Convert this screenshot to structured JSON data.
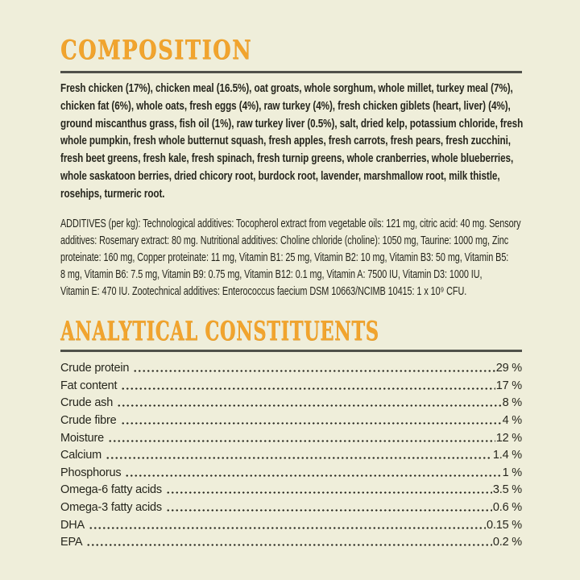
{
  "label": {
    "background_color": "#efeeda",
    "text_color": "#26261d",
    "accent_color": "#f1a42e",
    "divider_color": "#50514a"
  },
  "composition": {
    "title": "COMPOSITION",
    "ingredients_lines": [
      "Fresh chicken (17%), chicken meal (16.5%), oat groats, whole sorghum, whole millet, turkey meal (7%),",
      "chicken fat (6%), whole oats, fresh eggs (4%), raw turkey (4%), fresh chicken giblets (heart, liver) (4%),",
      "ground miscanthus grass, fish oil (1%), raw turkey liver (0.5%), salt, dried kelp, potassium chloride, fresh",
      "whole pumpkin, fresh whole butternut squash, fresh apples, fresh carrots, fresh pears, fresh zucchini,",
      "fresh beet greens, fresh kale, fresh spinach, fresh turnip greens, whole cranberries, whole blueberries,",
      "whole saskatoon berries, dried chicory root, burdock root, lavender, marshmallow root, milk thistle,",
      "rosehips, turmeric root."
    ],
    "additives_lines": [
      "ADDITIVES (per kg): Technological additives: Tocopherol extract from vegetable oils: 121 mg, citric acid: 40 mg. Sensory",
      "additives: Rosemary extract: 80 mg. Nutritional additives: Choline chloride (choline): 1050 mg, Taurine: 1000 mg, Zinc",
      "proteinate: 160 mg, Copper proteinate: 11 mg, Vitamin B1: 25 mg, Vitamin B2: 10 mg, Vitamin B3: 50 mg, Vitamin B5:",
      "8 mg, Vitamin B6: 7.5 mg, Vitamin B9: 0.75 mg, Vitamin B12: 0.1 mg, Vitamin A: 7500 IU, Vitamin D3: 1000 IU,",
      "Vitamin E: 470 IU. Zootechnical additives: Enterococcus faecium DSM 10663/NCIMB 10415: 1 x 10⁹ CFU."
    ]
  },
  "analytical": {
    "title": "ANALYTICAL CONSTITUENTS",
    "rows": [
      {
        "label": "Crude protein",
        "value": "29 %"
      },
      {
        "label": "Fat content",
        "value": "17 %"
      },
      {
        "label": "Crude ash",
        "value": "8 %"
      },
      {
        "label": "Crude fibre",
        "value": "4 %"
      },
      {
        "label": "Moisture",
        "value": "12 %"
      },
      {
        "label": "Calcium",
        "value": "1.4 %"
      },
      {
        "label": "Phosphorus",
        "value": "1 %"
      },
      {
        "label": "Omega-6 fatty acids",
        "value": "3.5 %"
      },
      {
        "label": "Omega-3 fatty acids",
        "value": "0.6 %"
      },
      {
        "label": "DHA",
        "value": "0.15 %"
      },
      {
        "label": "EPA",
        "value": "0.2 %"
      }
    ]
  }
}
